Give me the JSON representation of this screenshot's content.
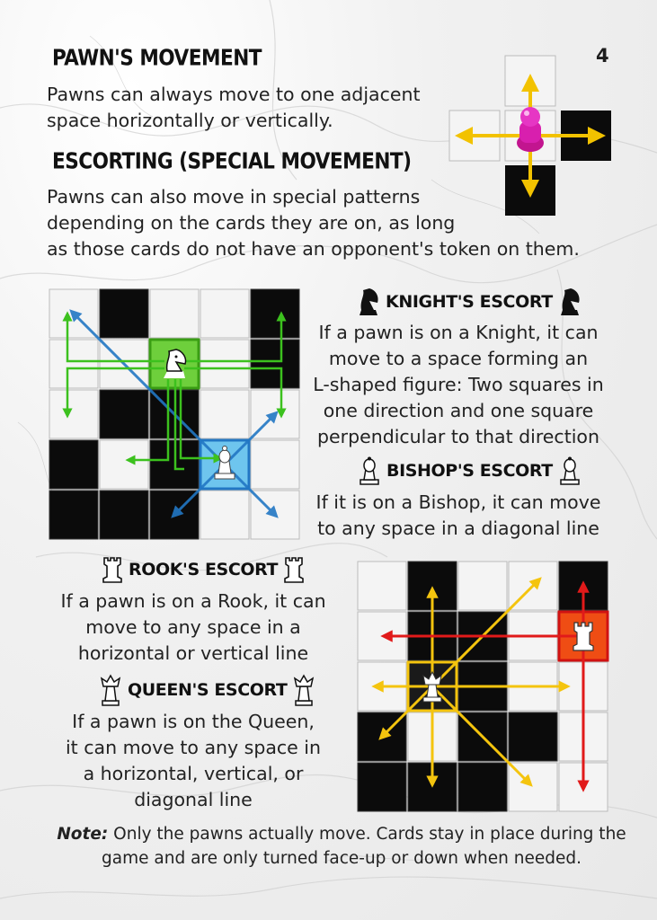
{
  "page_number": "4",
  "pawn_section": {
    "title": "PAWN'S MOVEMENT",
    "text_1": "Pawns can always move to one adjacent",
    "text_2": "space horizontally or vertically."
  },
  "escort_section": {
    "title": "ESCORTING (SPECIAL MOVEMENT)",
    "text_1": "Pawns can also move in special patterns",
    "text_2": "depending on the cards they are on, as long",
    "text_3": "as those cards do not have an opponent's token on them."
  },
  "knight": {
    "title": "KNIGHT'S ESCORT",
    "lines": [
      "If a pawn is on a Knight, it can",
      "move to a space forming an",
      "L-shaped figure: Two squares in",
      "one direction and one square",
      "perpendicular to that direction"
    ]
  },
  "bishop": {
    "title": "BISHOP'S ESCORT",
    "lines": [
      "If it is on a Bishop, it can move",
      "to any space in a diagonal line"
    ]
  },
  "rook": {
    "title": "ROOK'S ESCORT",
    "lines": [
      "If a pawn is on a Rook, it can",
      "move to any space in a",
      "horizontal or vertical line"
    ]
  },
  "queen": {
    "title": "QUEEN'S ESCORT",
    "lines": [
      "If a pawn is on the Queen,",
      "it can move to any space in",
      "a horizontal, vertical, or",
      "diagonal line"
    ]
  },
  "note": {
    "label": "Note:",
    "text": " Only the pawns actually move. Cards stay in place during the game and are only turned face-up or down when needed."
  },
  "colors": {
    "pawn_arrows": "#f2c200",
    "pawn": "#d81fae",
    "knight_arrows": "#3cc11e",
    "bishop_arrows": "#2277c4",
    "rook_arrows": "#e11a1a",
    "queen_arrows": "#f4c40e",
    "dark_card": "#0b0b0b",
    "light_card": "#f4f4f4"
  },
  "icons": [
    "knight-icon",
    "bishop-icon",
    "rook-icon",
    "queen-icon",
    "pawn-piece-icon"
  ]
}
